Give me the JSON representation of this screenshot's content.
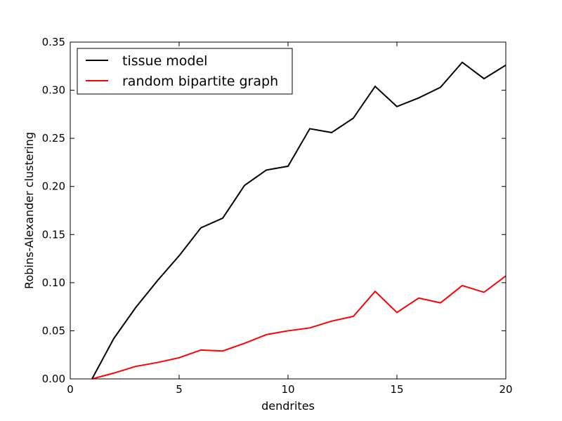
{
  "chart_data": {
    "type": "line",
    "title": "",
    "xlabel": "dendrites",
    "ylabel": "Robins-Alexander clustering",
    "xlim": [
      0,
      20
    ],
    "ylim": [
      0,
      0.35
    ],
    "xticks": [
      0,
      5,
      10,
      15,
      20
    ],
    "xtick_labels": [
      "0",
      "5",
      "10",
      "15",
      "20"
    ],
    "yticks": [
      0.0,
      0.05,
      0.1,
      0.15,
      0.2,
      0.25,
      0.3,
      0.35
    ],
    "ytick_labels": [
      "0.00",
      "0.05",
      "0.10",
      "0.15",
      "0.20",
      "0.25",
      "0.30",
      "0.35"
    ],
    "grid": false,
    "legend_position": "top-left",
    "x": [
      1,
      2,
      3,
      4,
      5,
      6,
      7,
      8,
      9,
      10,
      11,
      12,
      13,
      14,
      15,
      16,
      17,
      18,
      19,
      20
    ],
    "series": [
      {
        "name": "tissue model",
        "color": "#000000",
        "values": [
          0.0,
          0.042,
          0.074,
          0.102,
          0.128,
          0.157,
          0.167,
          0.201,
          0.217,
          0.221,
          0.26,
          0.256,
          0.271,
          0.304,
          0.283,
          0.292,
          0.303,
          0.329,
          0.312,
          0.326
        ]
      },
      {
        "name": "random bipartite graph",
        "color": "#ff0000",
        "values": [
          0.0,
          0.006,
          0.013,
          0.017,
          0.022,
          0.03,
          0.029,
          0.037,
          0.046,
          0.05,
          0.053,
          0.06,
          0.065,
          0.091,
          0.069,
          0.084,
          0.079,
          0.097,
          0.09,
          0.107
        ]
      }
    ]
  }
}
